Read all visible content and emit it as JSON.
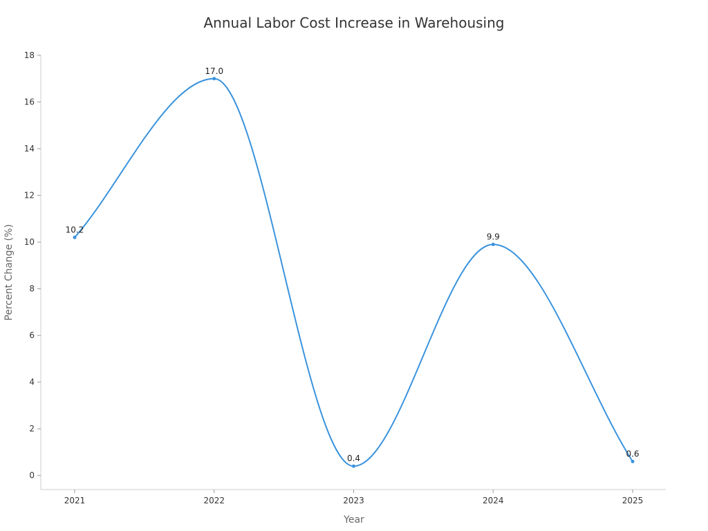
{
  "chart_data": {
    "type": "line",
    "title": "Annual Labor Cost Increase in Warehousing",
    "xlabel": "Year",
    "ylabel": "Percent Change (%)",
    "categories": [
      "2021",
      "2022",
      "2023",
      "2024",
      "2025"
    ],
    "series": [
      {
        "values": [
          10.2,
          17.0,
          0.4,
          9.9,
          0.6
        ],
        "labels": [
          "10.2",
          "17.0",
          "0.4",
          "9.9",
          "0.6"
        ],
        "color": "#3a93dd"
      }
    ],
    "ylim": [
      -0.6,
      18
    ],
    "yticks": [
      0,
      2,
      4,
      6,
      8,
      10,
      12,
      14,
      16,
      18
    ],
    "smooth": true,
    "grid": false,
    "legend": "none"
  }
}
